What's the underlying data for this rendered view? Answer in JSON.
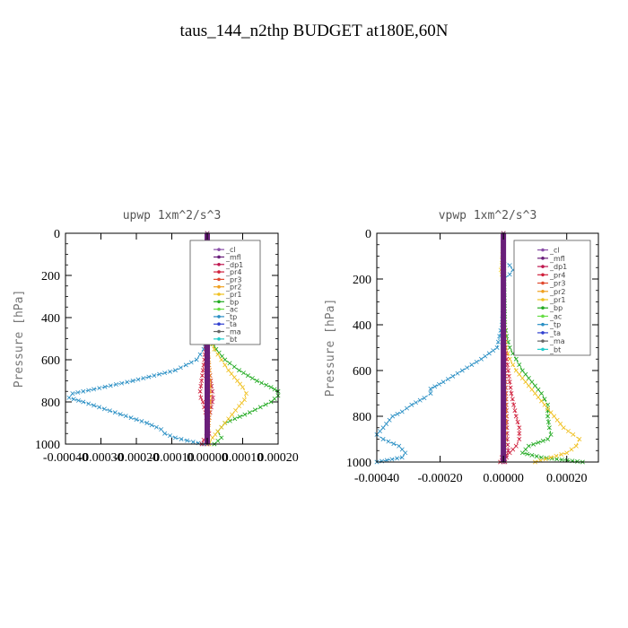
{
  "figure": {
    "title": "taus_144_n2thp  BUDGET at180E,60N"
  },
  "chart_data": [
    {
      "type": "line",
      "title": "upwp   1xm^2/s^3",
      "ylabel": "Pressure [hPa]",
      "xlim": [
        -0.0004,
        0.0002
      ],
      "ylim": [
        1000,
        0
      ],
      "y_ticks": [
        0,
        200,
        400,
        600,
        800,
        1000
      ],
      "x_ticks": [
        -0.0004,
        -0.0003,
        -0.0002,
        -0.0001,
        0.0,
        0.0001,
        0.0002
      ],
      "x_tick_labels": [
        "-0.00040",
        "-0.00030",
        "-0.00020",
        "-0.00010",
        "0.00000",
        "0.00010",
        "0.00020"
      ],
      "legend": [
        "_cl",
        "_mfl",
        "_dp1",
        "_pr4",
        "_pr3",
        "_pr2",
        "_pr1",
        "_bp",
        "_ac",
        "_tp",
        "_ta",
        "_ma",
        "_bt"
      ],
      "series": [
        {
          "name": "_tp",
          "color": "#2a8fc4",
          "pressure": [
            0,
            100,
            150,
            200,
            250,
            300,
            350,
            400,
            450,
            500,
            550,
            600,
            650,
            700,
            740,
            760,
            780,
            800,
            850,
            900,
            930,
            950,
            970,
            990,
            1000
          ],
          "values": [
            0,
            0,
            -5e-06,
            -8e-06,
            -3e-06,
            0,
            -1e-06,
            0,
            0,
            -2e-06,
            -1e-05,
            -3e-05,
            -9e-05,
            -0.00021,
            -0.00032,
            -0.00038,
            -0.00039,
            -0.00035,
            -0.00026,
            -0.00017,
            -0.00013,
            -0.00012,
            -9e-05,
            -4e-05,
            -1e-05
          ]
        },
        {
          "name": "_bp",
          "color": "#22aa22",
          "pressure": [
            0,
            300,
            400,
            500,
            550,
            600,
            650,
            700,
            730,
            750,
            770,
            800,
            850,
            900,
            940,
            970,
            1000
          ],
          "values": [
            0,
            0,
            3e-06,
            8e-06,
            2.5e-05,
            5e-05,
            9e-05,
            0.00014,
            0.00018,
            0.0002,
            0.0002,
            0.00018,
            0.00012,
            5e-05,
            3e-05,
            4e-05,
            2e-05
          ]
        },
        {
          "name": "_pr1",
          "color": "#f0c020",
          "pressure": [
            0,
            150,
            200,
            300,
            400,
            500,
            550,
            600,
            650,
            700,
            730,
            760,
            790,
            820,
            860,
            900,
            940,
            970,
            1000
          ],
          "values": [
            0,
            4e-06,
            8e-06,
            4e-06,
            3e-06,
            8e-06,
            2e-05,
            4e-05,
            6e-05,
            8.5e-05,
            0.0001,
            0.00011,
            0.000105,
            9e-05,
            7e-05,
            5e-05,
            3e-05,
            1.5e-05,
            5e-06
          ]
        },
        {
          "name": "_pr4",
          "color": "#d0203c",
          "pressure": [
            0,
            300,
            400,
            500,
            550,
            600,
            650,
            700,
            750,
            780,
            800,
            850,
            900,
            950,
            980,
            1000
          ],
          "values": [
            0,
            0,
            0,
            -3e-06,
            -5e-06,
            -8e-06,
            -1.2e-05,
            -1.6e-05,
            -2e-05,
            -1.8e-05,
            -1.2e-05,
            -5e-06,
            0,
            5e-06,
            -1e-05,
            -1.5e-05
          ]
        },
        {
          "name": "_dp1",
          "color": "#c01850",
          "pressure": [
            0,
            300,
            400,
            500,
            600,
            650,
            700,
            750,
            780,
            800,
            850,
            900,
            950,
            1000
          ],
          "values": [
            0,
            0,
            0,
            0,
            3e-06,
            6e-06,
            1e-05,
            1.4e-05,
            1.6e-05,
            1.4e-05,
            8e-06,
            3e-06,
            2e-06,
            0
          ]
        },
        {
          "name": "_pr2",
          "color": "#f0a020",
          "pressure": [
            0,
            500,
            600,
            700,
            800,
            900,
            1000
          ],
          "values": [
            0,
            0,
            4e-06,
            8e-06,
            8e-06,
            4e-06,
            0
          ]
        },
        {
          "name": "_cl",
          "color": "#8a4da8",
          "pressure": [
            0,
            100,
            200,
            300,
            400,
            500,
            600,
            700,
            800,
            900,
            1000
          ],
          "values": [
            0,
            0,
            0,
            0,
            0,
            0,
            0,
            0,
            0,
            0,
            0
          ]
        },
        {
          "name": "_mfl",
          "color": "#6a1f7a",
          "pressure": [
            0,
            1000
          ],
          "values": [
            0,
            0
          ]
        }
      ]
    },
    {
      "type": "line",
      "title": "vpwp   1xm^2/s^3",
      "ylabel": "Pressure [hPa]",
      "xlim": [
        -0.0004,
        0.0003
      ],
      "ylim": [
        1000,
        0
      ],
      "y_ticks": [
        0,
        200,
        400,
        600,
        800,
        1000
      ],
      "x_ticks": [
        -0.0004,
        -0.0002,
        0.0,
        0.0002
      ],
      "x_tick_labels": [
        "-0.00040",
        "-0.00020",
        "0.00000",
        "0.00020"
      ],
      "legend": [
        "_cl",
        "_mfl",
        "_dp1",
        "_pr4",
        "_pr3",
        "_pr2",
        "_pr1",
        "_bp",
        "_ac",
        "_tp",
        "_ta",
        "_ma",
        "_bt"
      ],
      "series": [
        {
          "name": "_tp",
          "color": "#2a8fc4",
          "pressure": [
            0,
            120,
            140,
            160,
            180,
            200,
            300,
            400,
            500,
            550,
            600,
            650,
            680,
            700,
            720,
            750,
            780,
            800,
            850,
            880,
            900,
            930,
            960,
            980,
            1000
          ],
          "values": [
            0,
            0,
            2e-05,
            3e-05,
            2e-05,
            0,
            0,
            -5e-06,
            -2e-05,
            -7e-05,
            -0.00013,
            -0.00019,
            -0.00023,
            -0.00023,
            -0.00025,
            -0.00029,
            -0.00032,
            -0.00035,
            -0.00038,
            -0.0004,
            -0.00038,
            -0.00033,
            -0.00031,
            -0.00032,
            -0.0004
          ]
        },
        {
          "name": "_bp",
          "color": "#22aa22",
          "pressure": [
            0,
            400,
            450,
            500,
            550,
            600,
            650,
            700,
            750,
            800,
            850,
            880,
            900,
            930,
            960,
            980,
            1000
          ],
          "values": [
            0,
            5e-06,
            1e-05,
            2e-05,
            4e-05,
            6e-05,
            9e-05,
            0.00012,
            0.00014,
            0.00014,
            0.000145,
            0.00015,
            0.00014,
            8e-05,
            6e-05,
            0.00012,
            0.00025
          ]
        },
        {
          "name": "_pr1",
          "color": "#f0c020",
          "pressure": [
            0,
            140,
            160,
            180,
            200,
            300,
            400,
            500,
            550,
            600,
            650,
            700,
            750,
            800,
            850,
            880,
            900,
            930,
            960,
            980,
            1000
          ],
          "values": [
            0,
            -5e-06,
            -8e-06,
            -5e-06,
            0,
            0,
            3e-06,
            8e-06,
            2e-05,
            4e-05,
            7e-05,
            0.0001,
            0.00013,
            0.00016,
            0.00019,
            0.00022,
            0.00024,
            0.00023,
            0.0002,
            0.00015,
            0.0001
          ]
        },
        {
          "name": "_pr4",
          "color": "#d0203c",
          "pressure": [
            0,
            400,
            500,
            600,
            700,
            800,
            850,
            900,
            930,
            960,
            980,
            1000
          ],
          "values": [
            0,
            0,
            5e-06,
            1.5e-05,
            2.5e-05,
            4e-05,
            5e-05,
            5e-05,
            4e-05,
            2e-05,
            -5e-06,
            -1e-05
          ]
        },
        {
          "name": "_dp1",
          "color": "#c01850",
          "pressure": [
            0,
            400,
            500,
            600,
            700,
            800,
            900,
            950,
            980,
            1000
          ],
          "values": [
            0,
            0,
            2e-06,
            5e-06,
            8e-06,
            1e-05,
            1.2e-05,
            1.5e-05,
            1e-05,
            5e-06
          ]
        },
        {
          "name": "_pr2",
          "color": "#f0a020",
          "pressure": [
            0,
            500,
            600,
            700,
            800,
            900,
            1000
          ],
          "values": [
            0,
            0,
            3e-06,
            6e-06,
            8e-06,
            6e-06,
            0
          ]
        },
        {
          "name": "_cl",
          "color": "#8a4da8",
          "pressure": [
            0,
            100,
            200,
            300,
            400,
            500,
            600,
            700,
            800,
            900,
            1000
          ],
          "values": [
            0,
            0,
            0,
            0,
            0,
            0,
            0,
            0,
            0,
            0,
            0
          ]
        },
        {
          "name": "_mfl",
          "color": "#6a1f7a",
          "pressure": [
            0,
            1000
          ],
          "values": [
            0,
            0
          ]
        }
      ],
      "legend_colors": {}
    }
  ],
  "legend_colors": {
    "_cl": "#8a4da8",
    "_mfl": "#6a1f7a",
    "_dp1": "#c01850",
    "_pr4": "#d0203c",
    "_pr3": "#e04a30",
    "_pr2": "#f0a020",
    "_pr1": "#f0c020",
    "_bp": "#22aa22",
    "_ac": "#66dd44",
    "_tp": "#2a8fc4",
    "_ta": "#3040d0",
    "_ma": "#666666",
    "_bt": "#22cccc"
  }
}
